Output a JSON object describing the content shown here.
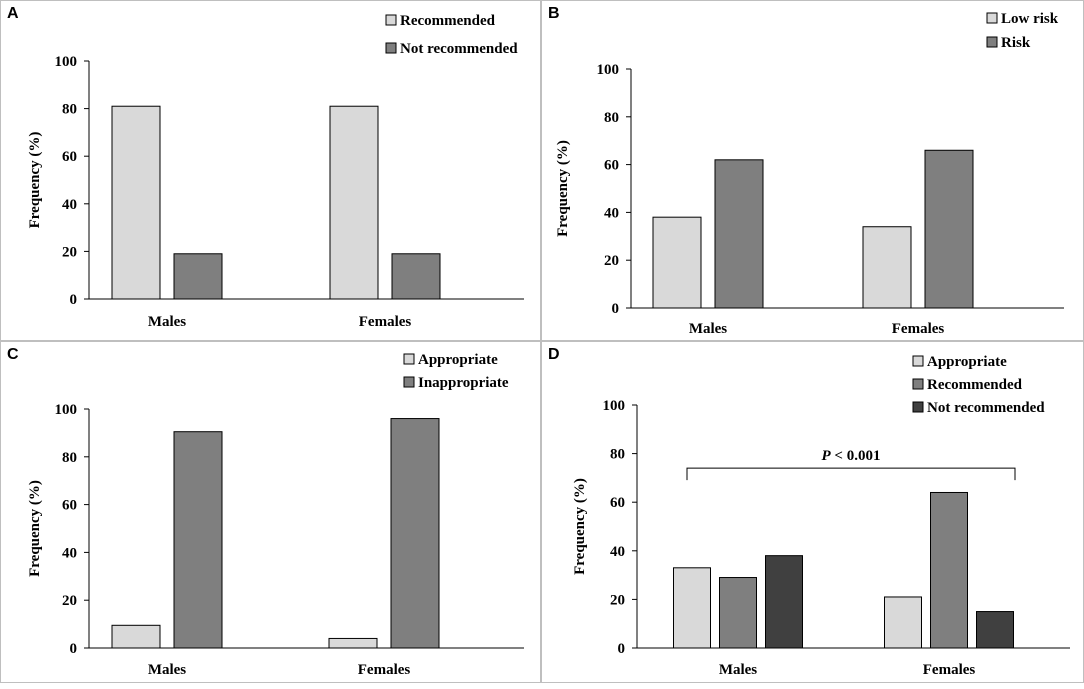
{
  "colors": {
    "light": "#d9d9d9",
    "mid": "#7f7f7f",
    "dark": "#404040",
    "axis": "#000000",
    "bar_stroke": "#000000"
  },
  "chart_data": [
    {
      "id": "A",
      "type": "bar",
      "panel_label": "A",
      "categories": [
        "Males",
        "Females"
      ],
      "series": [
        {
          "name": "Recommended",
          "color": "#d9d9d9",
          "values": [
            81,
            81
          ]
        },
        {
          "name": "Not recommended",
          "color": "#7f7f7f",
          "values": [
            19,
            19
          ]
        }
      ],
      "ylabel": "Frequency (%)",
      "xlabel": "",
      "ylim": [
        0,
        100
      ],
      "yticks": [
        "0",
        "20",
        "40",
        "60",
        "80",
        "100"
      ],
      "legend_position": "top-right",
      "grid": false
    },
    {
      "id": "B",
      "type": "bar",
      "panel_label": "B",
      "categories": [
        "Males",
        "Females"
      ],
      "series": [
        {
          "name": "Low risk",
          "color": "#d9d9d9",
          "values": [
            38,
            34
          ]
        },
        {
          "name": "Risk",
          "color": "#7f7f7f",
          "values": [
            62,
            66
          ]
        }
      ],
      "ylabel": "Frequency (%)",
      "xlabel": "",
      "ylim": [
        0,
        100
      ],
      "yticks": [
        "0",
        "20",
        "40",
        "60",
        "80",
        "100"
      ],
      "legend_position": "top-right",
      "grid": false
    },
    {
      "id": "C",
      "type": "bar",
      "panel_label": "C",
      "categories": [
        "Males",
        "Females"
      ],
      "series": [
        {
          "name": "Appropriate",
          "color": "#d9d9d9",
          "values": [
            9.5,
            4
          ]
        },
        {
          "name": "Inappropriate",
          "color": "#7f7f7f",
          "values": [
            90.5,
            96
          ]
        }
      ],
      "ylabel": "Frequency (%)",
      "xlabel": "",
      "ylim": [
        0,
        100
      ],
      "yticks": [
        "0",
        "20",
        "40",
        "60",
        "80",
        "100"
      ],
      "legend_position": "top-right",
      "grid": false
    },
    {
      "id": "D",
      "type": "bar",
      "panel_label": "D",
      "categories": [
        "Males",
        "Females"
      ],
      "series": [
        {
          "name": "Appropriate",
          "color": "#d9d9d9",
          "values": [
            33,
            21
          ]
        },
        {
          "name": "Recommended",
          "color": "#7f7f7f",
          "values": [
            29,
            64
          ]
        },
        {
          "name": "Not recommended",
          "color": "#404040",
          "values": [
            38,
            15
          ]
        }
      ],
      "ylabel": "Frequency (%)",
      "xlabel": "",
      "ylim": [
        0,
        100
      ],
      "yticks": [
        "0",
        "20",
        "40",
        "60",
        "80",
        "100"
      ],
      "legend_position": "top-right",
      "grid": false,
      "annotation": {
        "text": "P < 0.001",
        "italic_part": "P",
        "rest": " < 0.001",
        "bracket_value": 74
      }
    }
  ]
}
